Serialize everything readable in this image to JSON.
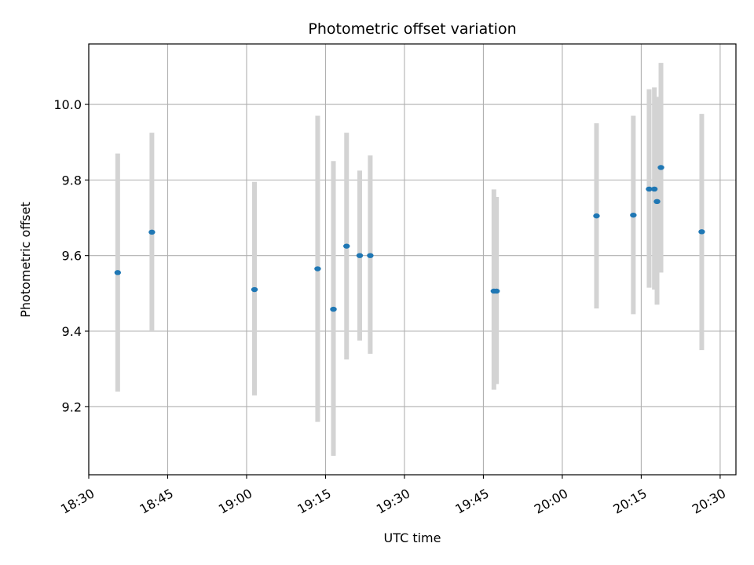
{
  "chart_data": {
    "type": "scatter",
    "title": "Photometric offset variation",
    "xlabel": "UTC time",
    "ylabel": "Photometric offset",
    "grid": true,
    "x_unit": "time HH:MM (UTC)",
    "xlim": [
      "18:30",
      "20:33"
    ],
    "ylim": [
      9.02,
      10.16
    ],
    "x_ticks": [
      "18:30",
      "18:45",
      "19:00",
      "19:15",
      "19:30",
      "19:45",
      "20:00",
      "20:15",
      "20:30"
    ],
    "y_ticks": [
      9.2,
      9.4,
      9.6,
      9.8,
      10.0
    ],
    "y_tick_labels": [
      "9.2",
      "9.4",
      "9.6",
      "9.8",
      "10.0"
    ],
    "colors": {
      "points": "#1f77b4",
      "error_bars": "#d3d3d3",
      "grid": "#b0b0b0"
    },
    "points": [
      {
        "x": "18:35:30",
        "y": 9.555,
        "ylo": 9.24,
        "yhi": 9.87
      },
      {
        "x": "18:42:00",
        "y": 9.662,
        "ylo": 9.4,
        "yhi": 9.925
      },
      {
        "x": "19:01:30",
        "y": 9.51,
        "ylo": 9.23,
        "yhi": 9.795
      },
      {
        "x": "19:13:30",
        "y": 9.565,
        "ylo": 9.16,
        "yhi": 9.97
      },
      {
        "x": "19:16:30",
        "y": 9.458,
        "ylo": 9.07,
        "yhi": 9.85
      },
      {
        "x": "19:19:00",
        "y": 9.625,
        "ylo": 9.325,
        "yhi": 9.925
      },
      {
        "x": "19:21:30",
        "y": 9.6,
        "ylo": 9.375,
        "yhi": 9.825
      },
      {
        "x": "19:23:30",
        "y": 9.6,
        "ylo": 9.34,
        "yhi": 9.865
      },
      {
        "x": "19:47:00",
        "y": 9.506,
        "ylo": 9.245,
        "yhi": 9.775
      },
      {
        "x": "19:47:30",
        "y": 9.506,
        "ylo": 9.26,
        "yhi": 9.755
      },
      {
        "x": "20:06:30",
        "y": 9.705,
        "ylo": 9.46,
        "yhi": 9.95
      },
      {
        "x": "20:13:30",
        "y": 9.707,
        "ylo": 9.445,
        "yhi": 9.97
      },
      {
        "x": "20:16:30",
        "y": 9.776,
        "ylo": 9.515,
        "yhi": 10.04
      },
      {
        "x": "20:17:30",
        "y": 9.776,
        "ylo": 9.51,
        "yhi": 10.045
      },
      {
        "x": "20:18:00",
        "y": 9.743,
        "ylo": 9.47,
        "yhi": 10.02
      },
      {
        "x": "20:18:45",
        "y": 9.833,
        "ylo": 9.555,
        "yhi": 10.11
      },
      {
        "x": "20:26:30",
        "y": 9.663,
        "ylo": 9.35,
        "yhi": 9.975
      }
    ]
  }
}
